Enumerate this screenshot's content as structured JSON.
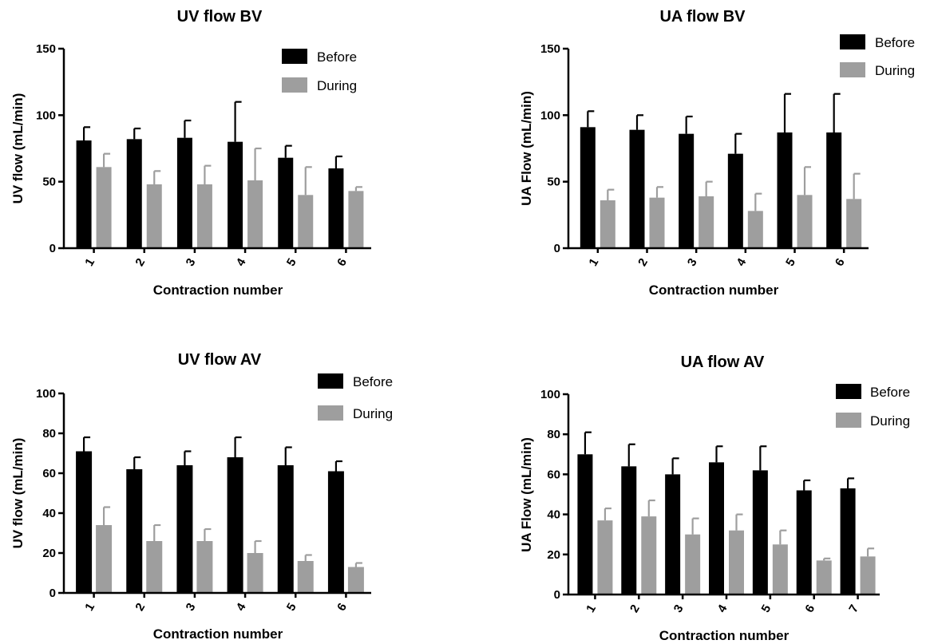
{
  "colors": {
    "before": "#000000",
    "during": "#9e9e9e",
    "axis": "#000000"
  },
  "chart_data": [
    {
      "type": "bar",
      "title": "UV flow BV",
      "xlabel": "Contraction number",
      "ylabel": "UV flow (mL/min)",
      "ylim": [
        0,
        150
      ],
      "yticks": [
        0,
        50,
        100,
        150
      ],
      "categories": [
        "1",
        "2",
        "3",
        "4",
        "5",
        "6"
      ],
      "legend": "top-right",
      "series": [
        {
          "name": "Before",
          "values": [
            81,
            82,
            83,
            80,
            68,
            60
          ],
          "error": [
            10,
            8,
            13,
            30,
            9,
            9
          ]
        },
        {
          "name": "During",
          "values": [
            61,
            48,
            48,
            51,
            40,
            43
          ],
          "error": [
            10,
            10,
            14,
            24,
            21,
            3
          ]
        }
      ]
    },
    {
      "type": "bar",
      "title": "UA flow BV",
      "xlabel": "Contraction number",
      "ylabel": "UA Flow (mL/min)",
      "ylim": [
        0,
        150
      ],
      "yticks": [
        0,
        50,
        100,
        150
      ],
      "categories": [
        "1",
        "2",
        "3",
        "4",
        "5",
        "6"
      ],
      "legend": "top-right",
      "series": [
        {
          "name": "Before",
          "values": [
            91,
            89,
            86,
            71,
            87,
            87
          ],
          "error": [
            12,
            11,
            13,
            15,
            29,
            29
          ]
        },
        {
          "name": "During",
          "values": [
            36,
            38,
            39,
            28,
            40,
            37
          ],
          "error": [
            8,
            8,
            11,
            13,
            21,
            19
          ]
        }
      ]
    },
    {
      "type": "bar",
      "title": "UV flow AV",
      "xlabel": "Contraction number",
      "ylabel": "UV flow (mL/min)",
      "ylim": [
        0,
        100
      ],
      "yticks": [
        0,
        20,
        40,
        60,
        80,
        100
      ],
      "categories": [
        "1",
        "2",
        "3",
        "4",
        "5",
        "6"
      ],
      "legend": "top-right",
      "series": [
        {
          "name": "Before",
          "values": [
            71,
            62,
            64,
            68,
            64,
            61
          ],
          "error": [
            7,
            6,
            7,
            10,
            9,
            5
          ]
        },
        {
          "name": "During",
          "values": [
            34,
            26,
            26,
            20,
            16,
            13
          ],
          "error": [
            9,
            8,
            6,
            6,
            3,
            2
          ]
        }
      ]
    },
    {
      "type": "bar",
      "title": "UA flow AV",
      "xlabel": "Contraction number",
      "ylabel": "UA Flow (mL/min)",
      "ylim": [
        0,
        100
      ],
      "yticks": [
        0,
        20,
        40,
        60,
        80,
        100
      ],
      "categories": [
        "1",
        "2",
        "3",
        "4",
        "5",
        "6",
        "7"
      ],
      "legend": "top-right",
      "series": [
        {
          "name": "Before",
          "values": [
            70,
            64,
            60,
            66,
            62,
            52,
            53
          ],
          "error": [
            11,
            11,
            8,
            8,
            12,
            5,
            5
          ]
        },
        {
          "name": "During",
          "values": [
            37,
            39,
            30,
            32,
            25,
            17,
            19
          ],
          "error": [
            6,
            8,
            8,
            8,
            7,
            1,
            4
          ]
        }
      ]
    }
  ]
}
